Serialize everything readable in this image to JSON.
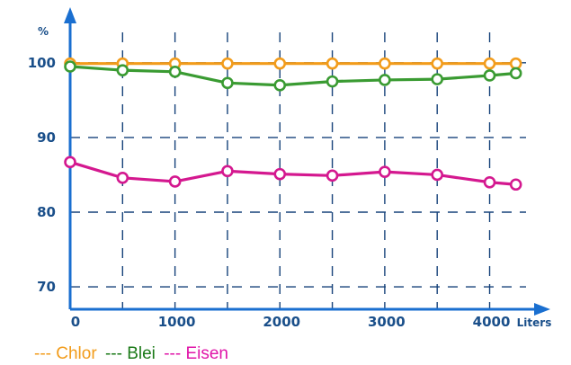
{
  "chart_data": {
    "type": "line",
    "title": "",
    "xlabel": "Liters",
    "ylabel": "%",
    "xlim": [
      0,
      4450
    ],
    "ylim": [
      67,
      106
    ],
    "x_ticks": [
      0,
      1000,
      2000,
      3000,
      4000
    ],
    "y_ticks": [
      70,
      80,
      90,
      100
    ],
    "grid": true,
    "legend_position": "bottom-left",
    "x": [
      0,
      500,
      1000,
      1500,
      2000,
      2500,
      3000,
      3500,
      4000,
      4250
    ],
    "series": [
      {
        "name": "Chlor",
        "legend_label": "--- Chlor",
        "color": "#f29c1b",
        "values": [
          99.9,
          99.9,
          99.9,
          99.9,
          99.9,
          99.9,
          99.9,
          99.9,
          99.9,
          99.9
        ]
      },
      {
        "name": "Blei",
        "legend_label": "--- Blei",
        "color": "#3a9b32",
        "values": [
          99.5,
          99.0,
          98.8,
          97.3,
          97.0,
          97.5,
          97.7,
          97.8,
          98.3,
          98.6
        ]
      },
      {
        "name": "Eisen",
        "legend_label": "---  Eisen",
        "color": "#d4188f",
        "values": [
          86.7,
          84.6,
          84.1,
          85.5,
          85.1,
          84.9,
          85.4,
          85.0,
          84.0,
          83.7
        ]
      }
    ],
    "colors": {
      "axis": "#1a6fd0",
      "grid": "#16427a",
      "tick_label": "#1a4f8a",
      "legend_chlor": "#f29c1b",
      "legend_blei": "#1b7a18",
      "legend_eisen": "#e015a8"
    }
  }
}
